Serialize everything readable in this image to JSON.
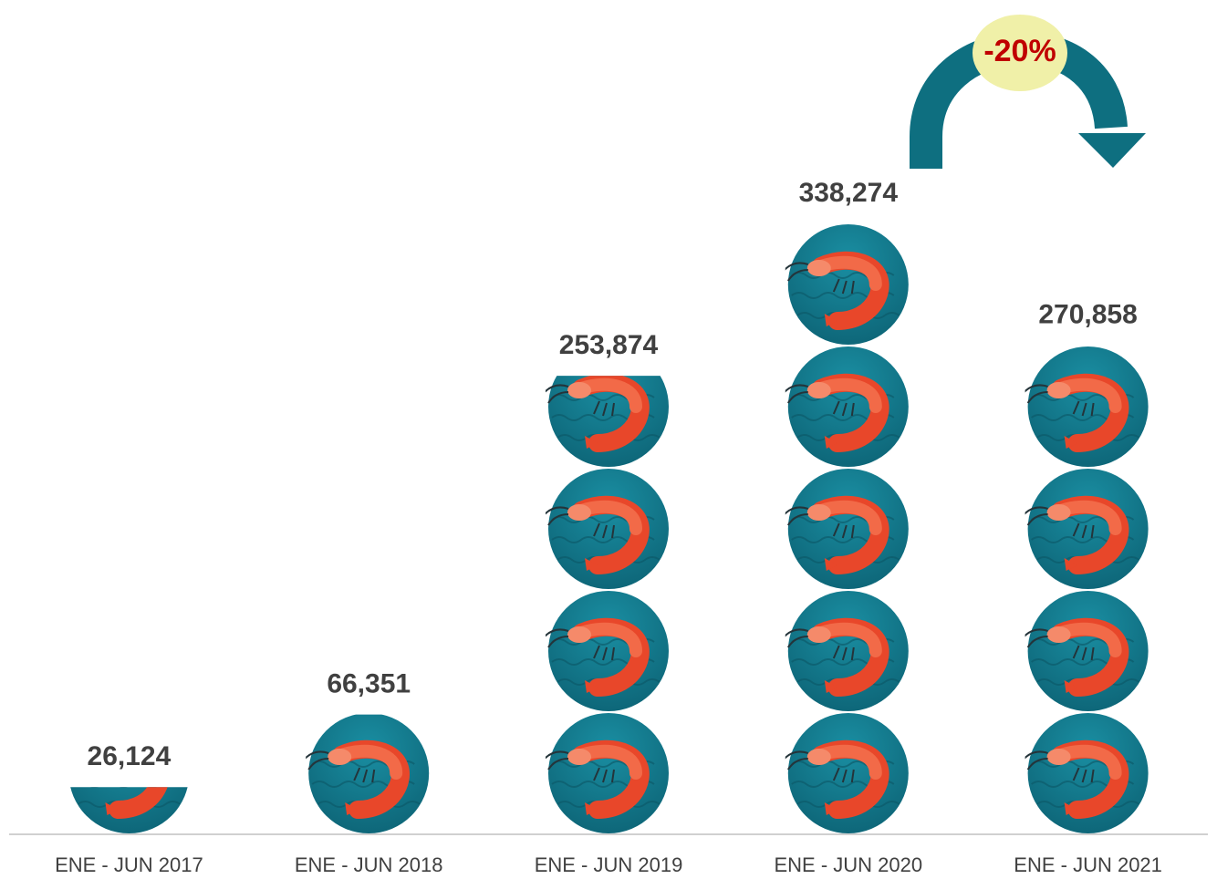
{
  "chart_data": {
    "type": "pictograph",
    "categories": [
      "ENE - JUN 2017",
      "ENE - JUN 2018",
      "ENE - JUN 2019",
      "ENE - JUN 2020",
      "ENE - JUN 2021"
    ],
    "values": [
      26124,
      66351,
      253874,
      338274,
      270858
    ],
    "value_labels": [
      "26,124",
      "66,351",
      "253,874",
      "338,274",
      "270,858"
    ],
    "annotation": "-20%"
  }
}
